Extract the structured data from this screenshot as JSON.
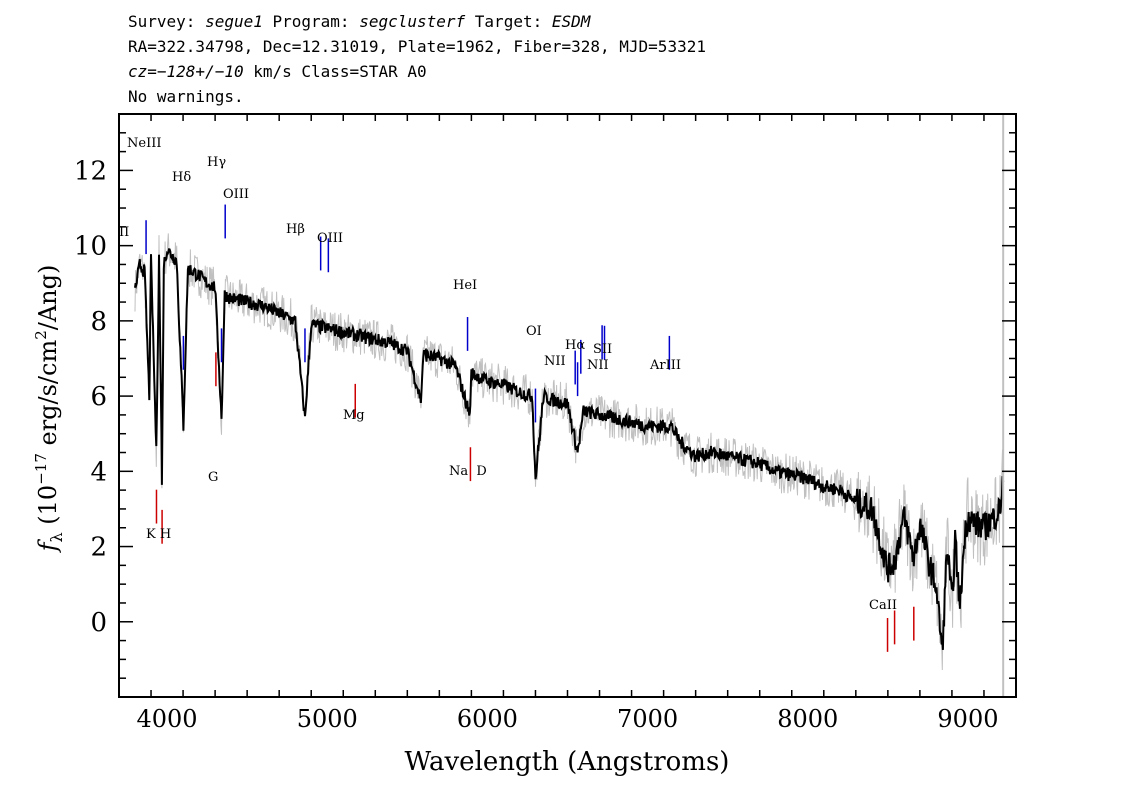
{
  "header": {
    "line1": {
      "survey_label": "Survey: ",
      "survey": "segue1",
      "program_label": " Program: ",
      "program": "segclusterf",
      "target_label": " Target: ",
      "target": "ESDM"
    },
    "line2": "RA=322.34798, Dec=12.31019, Plate=1962, Fiber=328, MJD=53321",
    "line3": {
      "cz": "cz=−128+/−10",
      "rest": " km/s Class=STAR A0"
    },
    "line4": "No warnings."
  },
  "colors": {
    "spectrum": "#000000",
    "noise_band": "#c0c0c0",
    "emission_line": "#0000cc",
    "absorption_line": "#cc0000",
    "axis": "#000000"
  },
  "chart_data": {
    "type": "line",
    "xlabel": "Wavelength (Angstroms)",
    "ylabel_parts": {
      "f": "f",
      "sub": "λ",
      "open": " (10",
      "exp": "−17",
      "mid": " erg/s/cm",
      "exp2": "2",
      "close": "/Ang)"
    },
    "xlim": [
      3700,
      9300
    ],
    "ylim": [
      -2,
      13.5
    ],
    "xticks": [
      4000,
      5000,
      6000,
      7000,
      8000,
      9000
    ],
    "yticks": [
      0,
      2,
      4,
      6,
      8,
      10,
      12
    ],
    "series": [
      {
        "x": [
          3800,
          3830,
          3860,
          3889,
          3900,
          3933,
          3950,
          3968,
          3980,
          4000,
          4060,
          4102,
          4130,
          4200,
          4250,
          4300,
          4340,
          4360,
          4400,
          4500,
          4600,
          4700,
          4800,
          4861,
          4900,
          5000,
          5100,
          5200,
          5300,
          5400,
          5500,
          5585,
          5600,
          5700,
          5800,
          5890,
          5900,
          6000,
          6100,
          6200,
          6280,
          6300,
          6350,
          6400,
          6500,
          6563,
          6600,
          6700,
          6800,
          6900,
          7000,
          7150,
          7200,
          7250,
          7300,
          7400,
          7500,
          7600,
          7700,
          7800,
          7900,
          8000,
          8100,
          8200,
          8300,
          8400,
          8498,
          8542,
          8600,
          8662,
          8700,
          8760,
          8800,
          8840,
          8870,
          8900,
          8920,
          8950,
          8980,
          9000,
          9050,
          9100,
          9150,
          9200,
          9220
        ],
        "y": [
          8.8,
          9.5,
          9.3,
          6.0,
          9.6,
          4.5,
          9.8,
          3.8,
          9.5,
          9.9,
          9.6,
          5.2,
          9.4,
          9.2,
          9.0,
          8.9,
          5.4,
          8.7,
          8.6,
          8.5,
          8.4,
          8.2,
          8.0,
          5.4,
          7.9,
          7.8,
          7.7,
          7.6,
          7.5,
          7.4,
          7.2,
          5.9,
          7.1,
          7.0,
          6.8,
          5.5,
          6.6,
          6.4,
          6.3,
          6.1,
          6.0,
          3.8,
          6.0,
          5.9,
          5.8,
          4.5,
          5.6,
          5.5,
          5.4,
          5.3,
          5.2,
          5.2,
          4.8,
          4.6,
          4.4,
          4.5,
          4.4,
          4.3,
          4.2,
          4.0,
          3.9,
          3.8,
          3.6,
          3.5,
          3.2,
          3.0,
          1.4,
          1.6,
          2.8,
          1.7,
          2.6,
          1.5,
          1.0,
          -0.8,
          2.0,
          0.5,
          2.2,
          0.4,
          2.3,
          2.8,
          2.6,
          2.5,
          2.7,
          3.0,
          3.8
        ]
      }
    ],
    "emission_lines": [
      {
        "label": "NeIII",
        "x": 3869
      },
      {
        "label": "Hδ",
        "x": 4102
      },
      {
        "label": "Hγ",
        "x": 4340
      },
      {
        "label": "OIII",
        "x": 4363
      },
      {
        "label": "Hβ",
        "x": 4861
      },
      {
        "label": "OIII",
        "x": 4959
      },
      {
        "label": "OIII",
        "x": 5007
      },
      {
        "label": "HeI",
        "x": 5876
      },
      {
        "label": "OI",
        "x": 6300
      },
      {
        "label": "NII",
        "x": 6548
      },
      {
        "label": "Hα",
        "x": 6563
      },
      {
        "label": "NII",
        "x": 6583
      },
      {
        "label": "SII",
        "x": 6716
      },
      {
        "label": "SII",
        "x": 6731
      },
      {
        "label": "ArIII",
        "x": 7136
      }
    ],
    "absorption_lines": [
      {
        "label": "K",
        "x": 3934
      },
      {
        "label": "H",
        "x": 3969
      },
      {
        "label": "G",
        "x": 4305
      },
      {
        "label": "Mg",
        "x": 5175
      },
      {
        "label": "Na  D",
        "x": 5894
      },
      {
        "label": "CaII",
        "x": 8498
      },
      {
        "label": "CaII",
        "x": 8542
      },
      {
        "label": "CaII",
        "x": 8662
      }
    ],
    "visible_line_labels": {
      "edge_oii": "II",
      "neiii": "NeIII",
      "hdelta": "Hδ",
      "hgamma": "Hγ",
      "oiii_a": "OIII",
      "hbeta": "Hβ",
      "oiii_b": "OIII",
      "hei": "HeI",
      "oi": "OI",
      "nii_a": "NII",
      "halpha": "Hα",
      "sii": "SII",
      "nii_b": "NII",
      "ariii": "ArIII",
      "kh": "K H",
      "g": "G",
      "mg": "Mg",
      "nad": "Na  D",
      "caii": "CaII"
    }
  }
}
